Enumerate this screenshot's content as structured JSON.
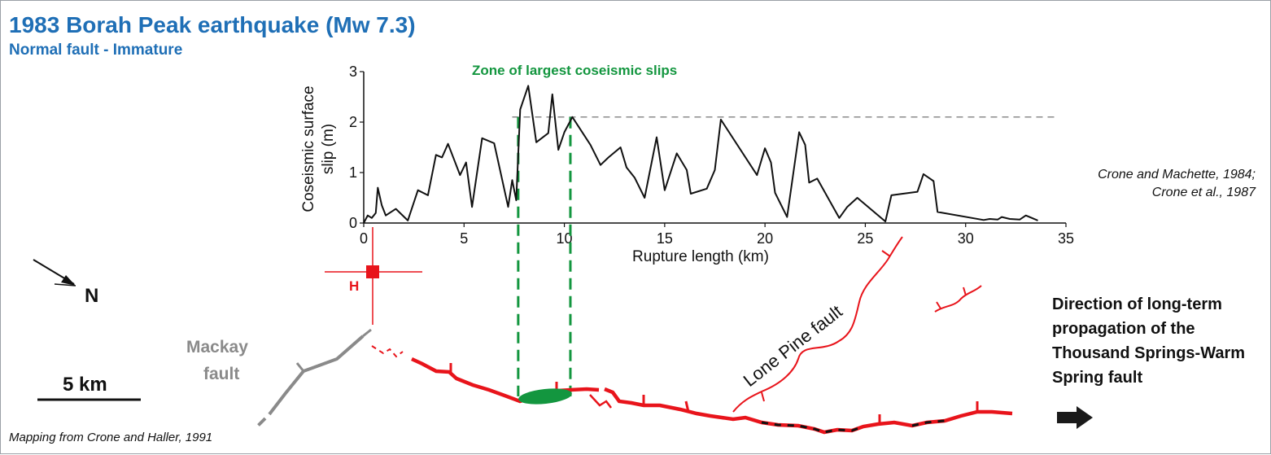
{
  "title": "1983 Borah Peak earthquake (Mw 7.3)",
  "subtitle": "Normal fault - Immature",
  "citation": [
    "Crone and Machette, 1984;",
    "Crone et al., 1987"
  ],
  "mapping_credit": "Mapping from Crone and Haller, 1991",
  "map_labels": {
    "north": "N",
    "hypocenter": "H",
    "mackay": [
      "Mackay",
      "fault"
    ],
    "lone_pine": "Lone Pine fault",
    "scale": "5 km",
    "direction": "Direction of long-term propagation of the Thousand Springs-Warm Spring fault"
  },
  "colors": {
    "title": "#1f6fb6",
    "rupture": "#e8141b",
    "mackay": "#8a8a8a",
    "slip_zone": "#13963f",
    "hypocenter": "#e8141b"
  },
  "chart_data": {
    "type": "line",
    "xlabel": "Rupture length (km)",
    "ylabel": [
      "Coseismic surface",
      "slip (m)"
    ],
    "xlim": [
      0,
      35
    ],
    "ylim": [
      0,
      3
    ],
    "xticks": [
      0,
      5,
      10,
      15,
      20,
      25,
      30,
      35
    ],
    "yticks": [
      0,
      1,
      2,
      3
    ],
    "annotation": "Zone of largest coseismic slips",
    "reference_line_y": 2.1,
    "zone_x": [
      7.7,
      10.3
    ],
    "grid": false,
    "series": [
      {
        "x": [
          0,
          0.2,
          0.4,
          0.6,
          0.7,
          0.9,
          1.1,
          1.6,
          2.2,
          2.7,
          3.2,
          3.6,
          3.9,
          4.2,
          4.8,
          5.1,
          5.4,
          5.9,
          6.5,
          7.2,
          7.4,
          7.6,
          7.8,
          8.2,
          8.6,
          9.2,
          9.4,
          9.7,
          10.0,
          10.4,
          11.3,
          11.8,
          12.2,
          12.8,
          13.1,
          13.5,
          14.0,
          14.6,
          15.0,
          15.6,
          16.1,
          16.3,
          17.1,
          17.5,
          17.8,
          19.6,
          20.0,
          20.3,
          20.5,
          21.1,
          21.7,
          22.0,
          22.2,
          22.6,
          23.7,
          24.1,
          24.6,
          26.0,
          26.3,
          27.6,
          27.9,
          28.4,
          28.6,
          30.9,
          31.2,
          31.6,
          31.8,
          32.2,
          32.7,
          33.0,
          33.6
        ],
        "y": [
          0,
          0.15,
          0.1,
          0.2,
          0.7,
          0.35,
          0.15,
          0.28,
          0.05,
          0.65,
          0.55,
          1.35,
          1.3,
          1.57,
          0.95,
          1.2,
          0.32,
          1.68,
          1.58,
          0.32,
          0.85,
          0.45,
          2.25,
          2.72,
          1.6,
          1.78,
          2.55,
          1.45,
          1.8,
          2.1,
          1.55,
          1.15,
          1.3,
          1.5,
          1.1,
          0.9,
          0.5,
          1.7,
          0.65,
          1.38,
          1.05,
          0.58,
          0.68,
          1.05,
          2.05,
          0.95,
          1.48,
          1.2,
          0.6,
          0.12,
          1.8,
          1.55,
          0.8,
          0.88,
          0.1,
          0.32,
          0.5,
          0.03,
          0.55,
          0.62,
          0.97,
          0.83,
          0.22,
          0.06,
          0.08,
          0.07,
          0.12,
          0.08,
          0.07,
          0.15,
          0.05
        ]
      }
    ]
  }
}
